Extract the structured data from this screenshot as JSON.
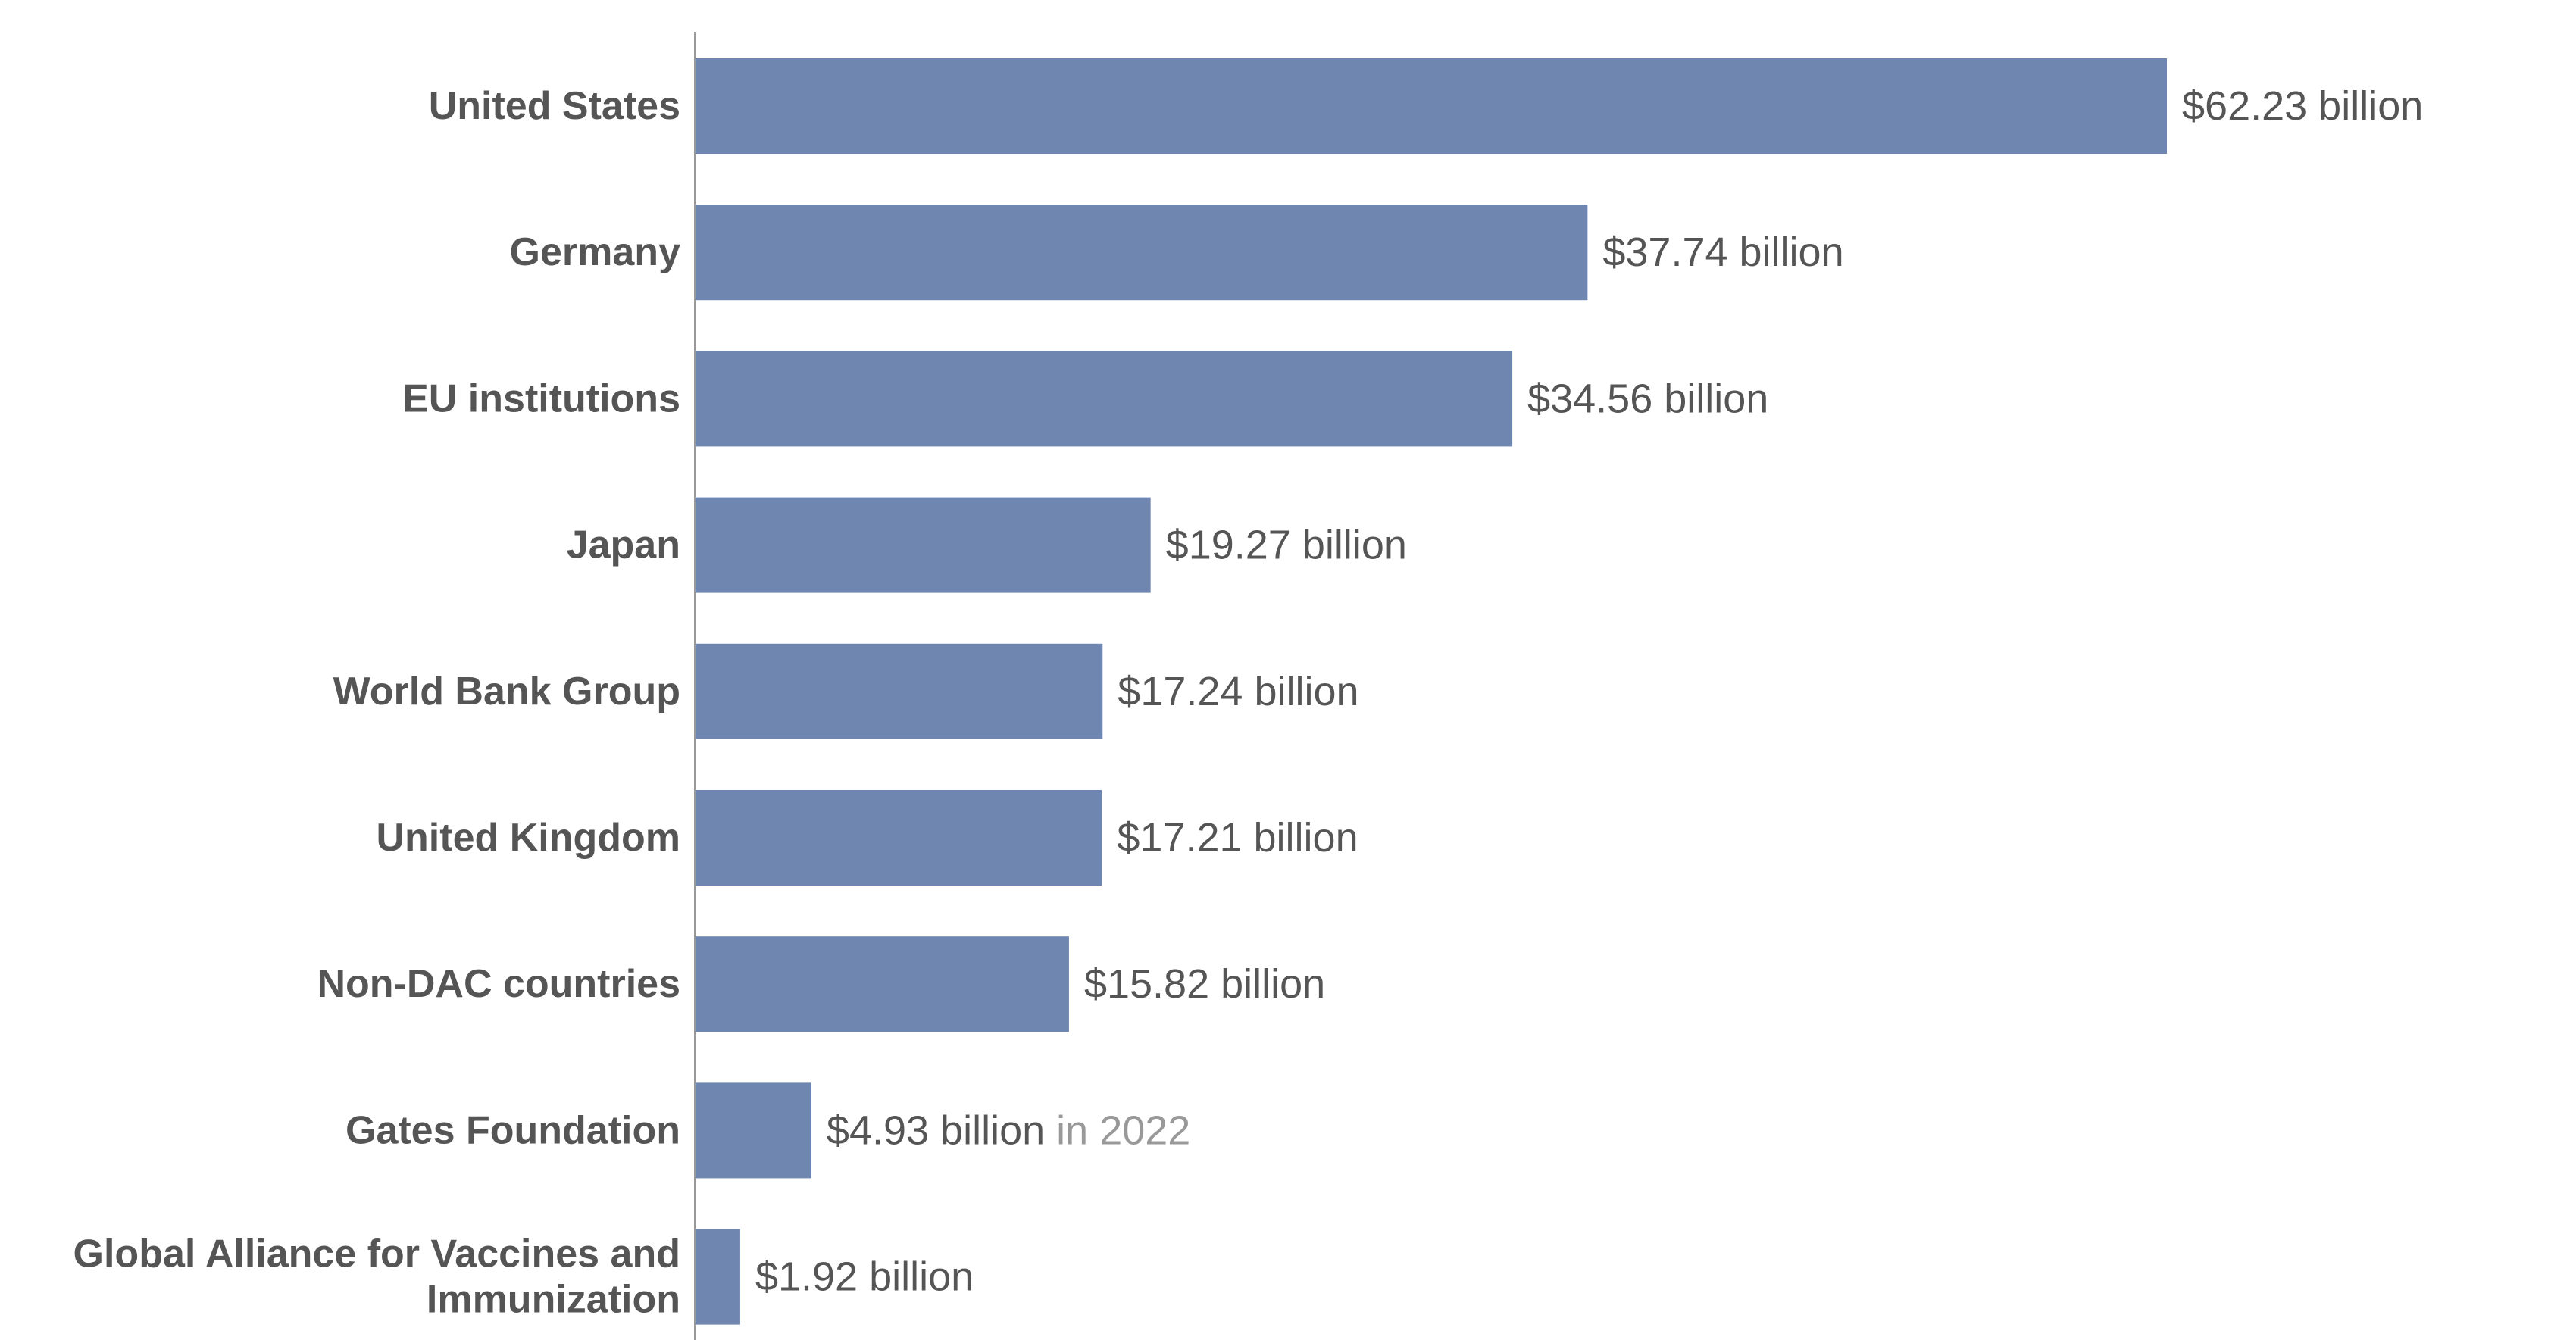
{
  "chart_data": {
    "type": "bar",
    "orientation": "horizontal",
    "categories": [
      "United States",
      "Germany",
      "EU institutions",
      "Japan",
      "World Bank Group",
      "United Kingdom",
      "Non-DAC countries",
      "Gates Foundation",
      "Global Alliance for Vaccines and Immunization"
    ],
    "category_lines": [
      [
        "United States"
      ],
      [
        "Germany"
      ],
      [
        "EU institutions"
      ],
      [
        "Japan"
      ],
      [
        "World Bank Group"
      ],
      [
        "United Kingdom"
      ],
      [
        "Non-DAC countries"
      ],
      [
        "Gates Foundation"
      ],
      [
        "Global Alliance for Vaccines and",
        "Immunization"
      ]
    ],
    "values": [
      62.23,
      37.74,
      34.56,
      19.27,
      17.24,
      17.21,
      15.82,
      4.93,
      1.92
    ],
    "value_labels": [
      "$62.23 billion",
      "$37.74 billion",
      "$34.56 billion",
      "$19.27 billion",
      "$17.24 billion",
      "$17.21 billion",
      "$15.82 billion",
      "$4.93 billion",
      "$1.92 billion"
    ],
    "value_notes": [
      "",
      "",
      "",
      "",
      "",
      "",
      "",
      "in 2022",
      ""
    ],
    "xlim": [
      0,
      62.23
    ],
    "grid": false,
    "legend": "none",
    "title": "",
    "xlabel": "",
    "ylabel": ""
  },
  "colors": {
    "bar": "#6f87b0",
    "label_text": "#555555",
    "note_text": "#999999",
    "axis_line": "#999999",
    "background": "#ffffff"
  }
}
